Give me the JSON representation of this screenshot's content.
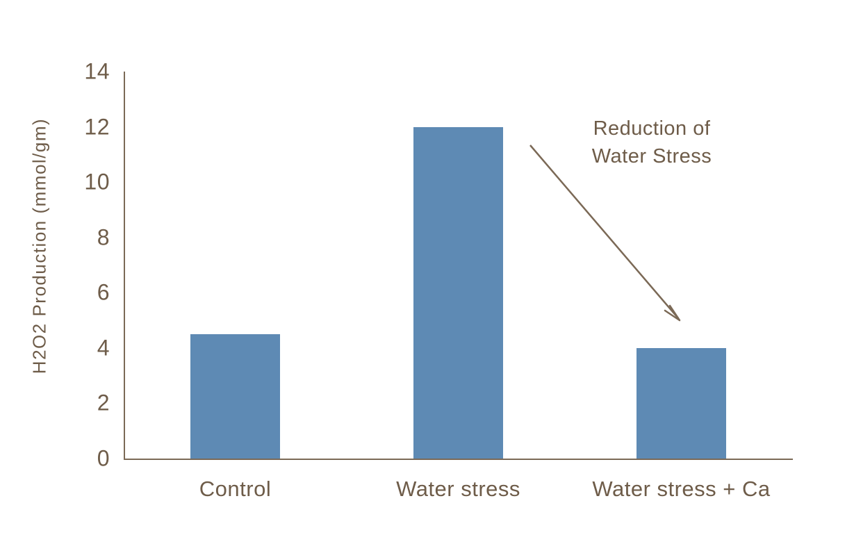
{
  "colors": {
    "bar": "#5e8ab4",
    "text": "#6e5c49",
    "axis": "#7b6956"
  },
  "annotation": {
    "line1": "Reduction of",
    "line2": "Water Stress"
  },
  "chart_data": {
    "type": "bar",
    "categories": [
      "Control",
      "Water stress",
      "Water stress + Ca"
    ],
    "values": [
      4.5,
      12,
      4
    ],
    "title": "",
    "xlabel": "",
    "ylabel": "H2O2 Production (mmol/gm)",
    "ylim": [
      0,
      14
    ],
    "yticks": [
      0,
      2,
      4,
      6,
      8,
      10,
      12,
      14
    ],
    "grid": false,
    "legend": "none",
    "annotation": {
      "text": [
        "Reduction of",
        "Water Stress"
      ],
      "arrow": "points from Water stress bar down-right to Water stress + Ca bar"
    }
  }
}
